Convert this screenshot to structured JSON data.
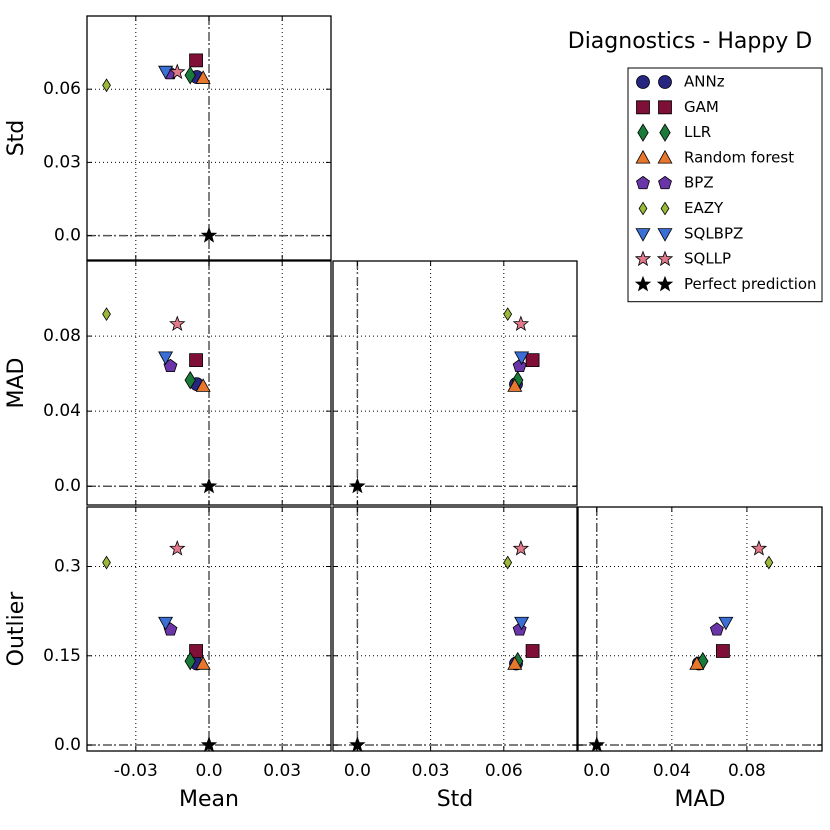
{
  "chart_data": {
    "type": "scatter",
    "title": "Diagnostics - Happy D",
    "variables": [
      {
        "name": "Mean",
        "lim": [
          -0.05,
          0.05
        ],
        "ticks": [
          -0.03,
          {
            "value": 0,
            "label": "0.0"
          },
          0.03
        ]
      },
      {
        "name": "Std",
        "lim": [
          -0.01,
          0.09
        ],
        "ticks": [
          {
            "value": 0,
            "label": "0.0"
          },
          0.03,
          0.06
        ]
      },
      {
        "name": "MAD",
        "lim": [
          -0.01,
          0.12
        ],
        "ticks": [
          {
            "value": 0,
            "label": "0.0"
          },
          0.04,
          0.08
        ]
      },
      {
        "name": "Outlier",
        "lim": [
          -0.01,
          0.4
        ],
        "ticks": [
          {
            "value": 0,
            "label": "0.0"
          },
          0.15,
          0.3
        ]
      }
    ],
    "grid": true,
    "legend": "upper right",
    "series": [
      {
        "name": "ANNz",
        "color": "#262680",
        "marker": "circle",
        "values": [
          -0.005,
          0.065,
          0.0544,
          0.137
        ]
      },
      {
        "name": "GAM",
        "color": "#7f0f36",
        "marker": "square",
        "values": [
          -0.0053,
          0.0718,
          0.0672,
          0.158
        ]
      },
      {
        "name": "LLR",
        "color": "#1a7a3a",
        "marker": "diamond",
        "values": [
          -0.0077,
          0.0657,
          0.0565,
          0.141
        ]
      },
      {
        "name": "Random forest",
        "color": "#e8772e",
        "marker": "triangle-up",
        "values": [
          -0.0024,
          0.0645,
          0.0533,
          0.136
        ]
      },
      {
        "name": "BPZ",
        "color": "#6a35a8",
        "marker": "pentagon",
        "values": [
          -0.0158,
          0.0665,
          0.064,
          0.194
        ]
      },
      {
        "name": "EAZY",
        "color": "#9ab83a",
        "marker": "thin-diamond",
        "values": [
          -0.042,
          0.0616,
          0.0917,
          0.3067
        ]
      },
      {
        "name": "SQLBPZ",
        "color": "#3b6fd6",
        "marker": "triangle-down",
        "values": [
          -0.0178,
          0.0673,
          0.0688,
          0.206
        ]
      },
      {
        "name": "SQLLP",
        "color": "#e07a8a",
        "marker": "star",
        "values": [
          -0.013,
          0.067,
          0.0864,
          0.33
        ]
      },
      {
        "name": "Perfect prediction",
        "color": "#000000",
        "marker": "star",
        "values": [
          0,
          0,
          0,
          0
        ]
      }
    ]
  }
}
